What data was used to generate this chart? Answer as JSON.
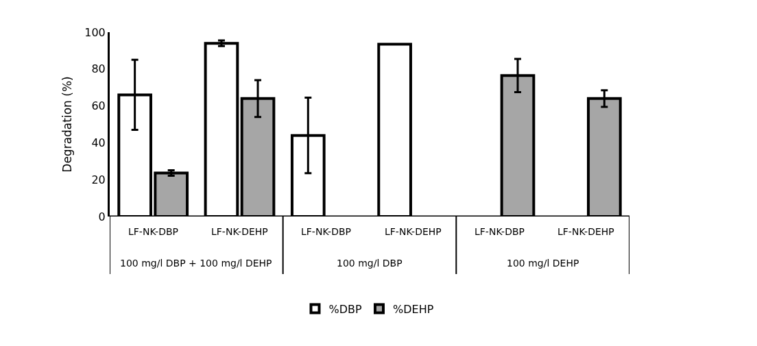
{
  "chart_data": {
    "type": "bar",
    "ylabel": "Degradation (%)",
    "categories": [
      "LF-NK-DBP",
      "LF-NK-DEHP",
      "LF-NK-DBP",
      "LF-NK-DEHP",
      "LF-NK-DBP",
      "LF-NK-DEHP"
    ],
    "annotations": [
      "100 mg/l DBP + 100 mg/l DEHP",
      "100 mg/l DBP",
      "100 mg/l DEHP"
    ],
    "series": [
      {
        "name": "%DBP",
        "color": "#ffffff",
        "values": [
          66,
          94,
          44,
          93.5,
          null,
          null
        ],
        "errors": [
          19,
          1.5,
          20.5,
          null,
          null,
          null
        ]
      },
      {
        "name": "%DEHP",
        "color": "#a6a6a6",
        "values": [
          23.6,
          64,
          null,
          null,
          76.5,
          64
        ],
        "errors": [
          1.5,
          10,
          null,
          null,
          9,
          4.5
        ]
      }
    ],
    "ylim": [
      0,
      100
    ],
    "yticks": [
      0,
      20,
      40,
      60,
      80,
      100
    ],
    "legend": "bottom"
  }
}
